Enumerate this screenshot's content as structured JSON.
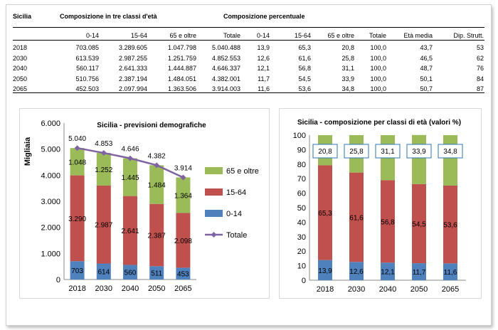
{
  "table": {
    "region_label": "Sicilia",
    "group_header_abs": "Composizione in tre classi  d'età",
    "group_header_pct": "Composizione percentuale",
    "col_headers": [
      "0-14",
      "15-64",
      "65 e oltre",
      "Totale",
      "0-14",
      "15-64",
      "65 e oltre",
      "Totale",
      "Età media",
      "Dip. Strutt."
    ],
    "rows": [
      {
        "year": "2018",
        "cells": [
          "703.085",
          "3.289.605",
          "1.047.798",
          "5.040.488",
          "13,9",
          "65,3",
          "20,8",
          "100,0",
          "43,7",
          "53"
        ]
      },
      {
        "year": "2030",
        "cells": [
          "613.539",
          "2.987.255",
          "1.251.759",
          "4.852.553",
          "12,6",
          "61,6",
          "25,8",
          "100,0",
          "46,5",
          "62"
        ]
      },
      {
        "year": "2040",
        "cells": [
          "560.117",
          "2.641.333",
          "1.444.887",
          "4.646.337",
          "12,1",
          "56,8",
          "31,1",
          "100,0",
          "48,7",
          "76"
        ]
      },
      {
        "year": "2050",
        "cells": [
          "510.756",
          "2.387.194",
          "1.484.051",
          "4.382.001",
          "11,7",
          "54,5",
          "33,9",
          "100,0",
          "50,1",
          "84"
        ]
      },
      {
        "year": "2065",
        "cells": [
          "452.503",
          "2.097.994",
          "1.363.506",
          "3.914.003",
          "11,6",
          "53,6",
          "34,8",
          "100,0",
          "50,7",
          "87"
        ]
      }
    ]
  },
  "colors": {
    "young": "#4f81bd",
    "working": "#c0504d",
    "old": "#9bbb59",
    "total": "#8064a2"
  },
  "chart_data": [
    {
      "type": "bar",
      "stacked": true,
      "title": "Sicilia - previsioni demografiche",
      "ylabel": "Migliaia",
      "xlabel": "",
      "ylim": [
        0,
        6000
      ],
      "yticks": [
        "0",
        "1.000",
        "2.000",
        "3.000",
        "4.000",
        "5.000",
        "6.000"
      ],
      "tick_values": [
        0,
        1000,
        2000,
        3000,
        4000,
        5000,
        6000
      ],
      "categories": [
        "2018",
        "2030",
        "2040",
        "2050",
        "2065"
      ],
      "series": [
        {
          "name": "0-14",
          "values": [
            703,
            614,
            560,
            511,
            453
          ],
          "labels": [
            "703",
            "614",
            "560",
            "511",
            "453"
          ]
        },
        {
          "name": "15-64",
          "values": [
            3290,
            2987,
            2641,
            2387,
            2098
          ],
          "labels": [
            "3.290",
            "2.987",
            "2.641",
            "2.387",
            "2.098"
          ]
        },
        {
          "name": "65 e oltre",
          "values": [
            1048,
            1252,
            1445,
            1484,
            1364
          ],
          "labels": [
            "1.048",
            "1.252",
            "1.445",
            "1.484",
            "1.364"
          ]
        }
      ],
      "line": {
        "name": "Totale",
        "values": [
          5040,
          4853,
          4646,
          4382,
          3914
        ],
        "labels": [
          "5.040",
          "4.853",
          "4.646",
          "4.382",
          "3.914"
        ]
      },
      "legend": [
        "65 e oltre",
        "15-64",
        "0-14",
        "Totale"
      ],
      "legend_position": "right"
    },
    {
      "type": "bar",
      "stacked": true,
      "title": "Sicilia - composizione per classi di età (valori %)",
      "ylim": [
        0,
        100
      ],
      "yticks": [
        "0",
        "10",
        "20",
        "30",
        "40",
        "50",
        "60",
        "70",
        "80",
        "90",
        "100"
      ],
      "tick_values": [
        0,
        10,
        20,
        30,
        40,
        50,
        60,
        70,
        80,
        90,
        100
      ],
      "categories": [
        "2018",
        "2030",
        "2040",
        "2050",
        "2065"
      ],
      "series": [
        {
          "name": "0-14",
          "values": [
            13.9,
            12.6,
            12.1,
            11.7,
            11.6
          ],
          "labels": [
            "13,9",
            "12,6",
            "12,1",
            "11,7",
            "11,6"
          ]
        },
        {
          "name": "15-64",
          "values": [
            65.3,
            61.6,
            56.8,
            54.5,
            53.6
          ],
          "labels": [
            "65,3",
            "61,6",
            "56,8",
            "54,5",
            "53,6"
          ]
        },
        {
          "name": "65 e oltre",
          "values": [
            20.8,
            25.8,
            31.1,
            33.9,
            34.8
          ],
          "labels": [
            "20,8",
            "25,8",
            "31,1",
            "33,9",
            "34,8"
          ]
        }
      ]
    }
  ]
}
